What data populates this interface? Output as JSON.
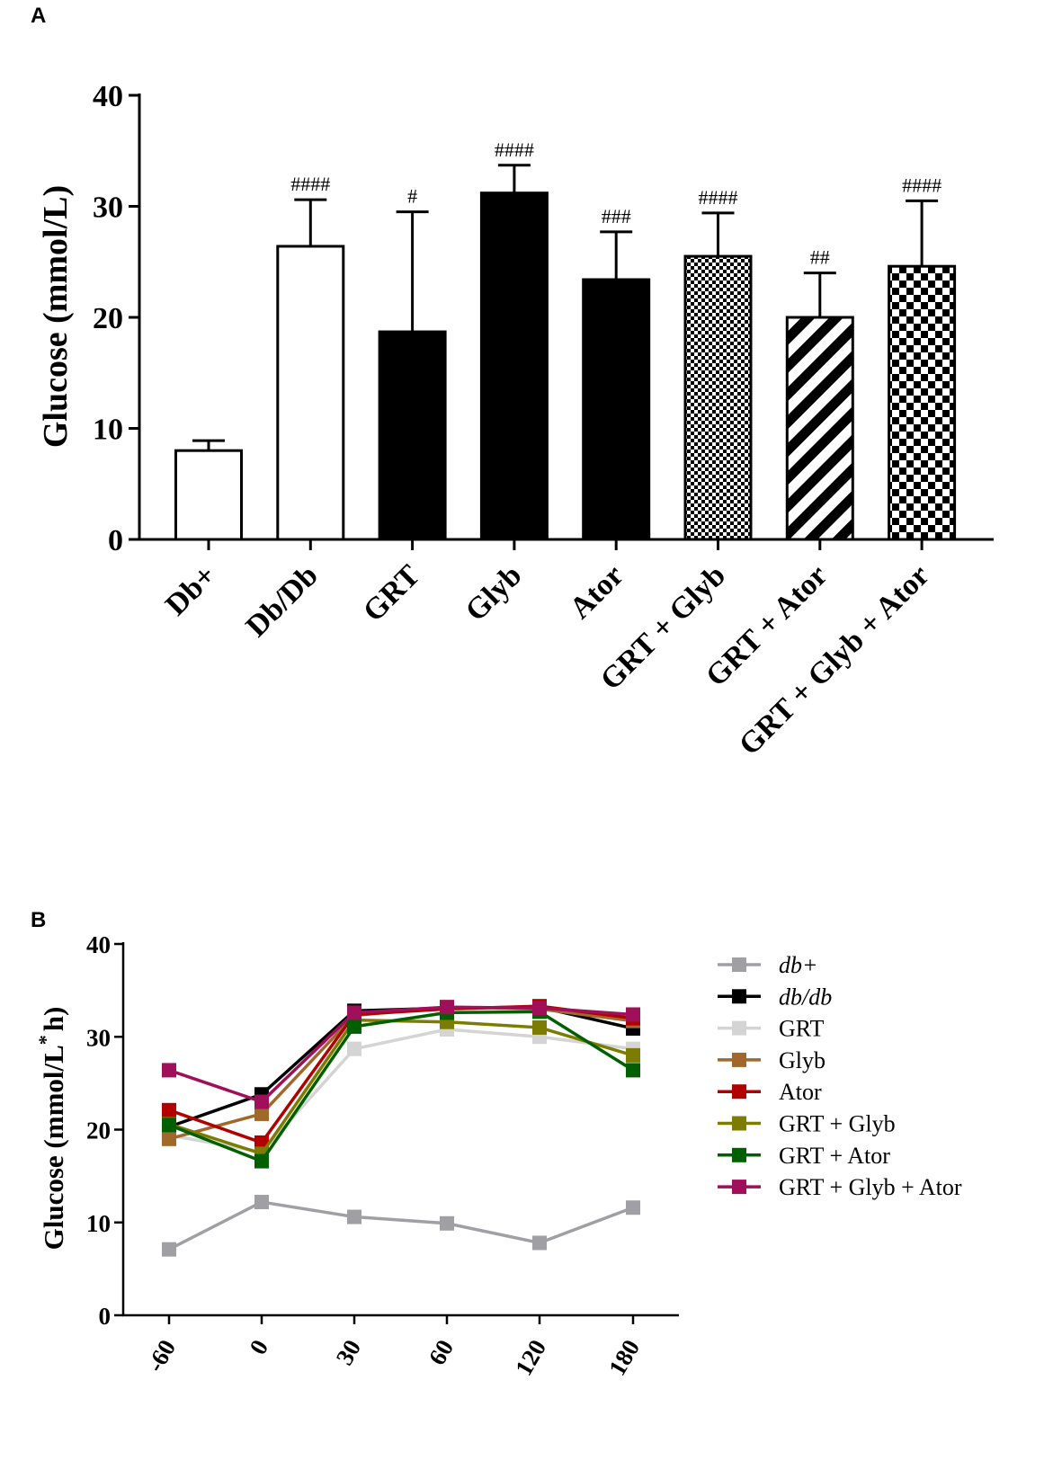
{
  "panels": {
    "a": "A",
    "b": "B"
  },
  "chart_data": [
    {
      "type": "bar",
      "panel": "A",
      "ylabel": "Glucose (mmol/L)",
      "ylim": [
        0,
        40
      ],
      "yticks": [
        0,
        10,
        20,
        30,
        40
      ],
      "categories": [
        "Db+",
        "Db/Db",
        "GRT",
        "Glyb",
        "Ator",
        "GRT + Glyb",
        "GRT + Ator",
        "GRT + Glyb + Ator"
      ],
      "values": [
        8.0,
        26.4,
        18.7,
        31.2,
        23.4,
        25.5,
        20.0,
        24.6
      ],
      "errors": [
        0.9,
        4.2,
        10.8,
        2.5,
        4.3,
        3.9,
        4.0,
        5.9
      ],
      "fills": [
        "white",
        "white",
        "black",
        "black",
        "black",
        "fine-check",
        "diagonal-stripes",
        "coarse-check"
      ],
      "annotations": [
        "",
        "####",
        "#",
        "####",
        "###",
        "####",
        "##",
        "####"
      ]
    },
    {
      "type": "line",
      "panel": "B",
      "ylabel": "Glucose (mmol/L",
      "ylabel_sup": "*",
      "ylabel_tail": "h)",
      "ylim": [
        0,
        40
      ],
      "yticks": [
        0,
        10,
        20,
        30,
        40
      ],
      "x": [
        "-60",
        "0",
        "30",
        "60",
        "120",
        "180"
      ],
      "series": [
        {
          "name": "db+",
          "italic": true,
          "color": "#a0a0a4",
          "values": [
            7.1,
            12.2,
            10.6,
            9.9,
            7.8,
            11.6
          ]
        },
        {
          "name": "db/db",
          "italic": true,
          "color": "#000000",
          "values": [
            20.3,
            23.8,
            32.8,
            33.1,
            33.2,
            30.9
          ]
        },
        {
          "name": "GRT",
          "italic": false,
          "color": "#d4d4d4",
          "values": [
            19.4,
            17.6,
            28.7,
            30.8,
            30.0,
            28.7
          ]
        },
        {
          "name": "Glyb",
          "italic": false,
          "color": "#a0682a",
          "values": [
            19.0,
            21.7,
            32.3,
            33.2,
            33.0,
            31.7
          ]
        },
        {
          "name": "Ator",
          "italic": false,
          "color": "#b00000",
          "values": [
            22.1,
            18.6,
            32.4,
            33.0,
            33.3,
            32.0
          ]
        },
        {
          "name": "GRT + Glyb",
          "italic": false,
          "color": "#7c7c00",
          "values": [
            20.6,
            17.4,
            31.8,
            31.6,
            31.0,
            28.0
          ]
        },
        {
          "name": "GRT + Ator",
          "italic": false,
          "color": "#006000",
          "values": [
            20.5,
            16.6,
            31.1,
            32.6,
            32.7,
            26.4
          ]
        },
        {
          "name": "GRT + Glyb + Ator",
          "italic": false,
          "color": "#a0105a",
          "values": [
            26.4,
            23.0,
            32.6,
            33.2,
            33.1,
            32.4
          ]
        }
      ]
    }
  ]
}
